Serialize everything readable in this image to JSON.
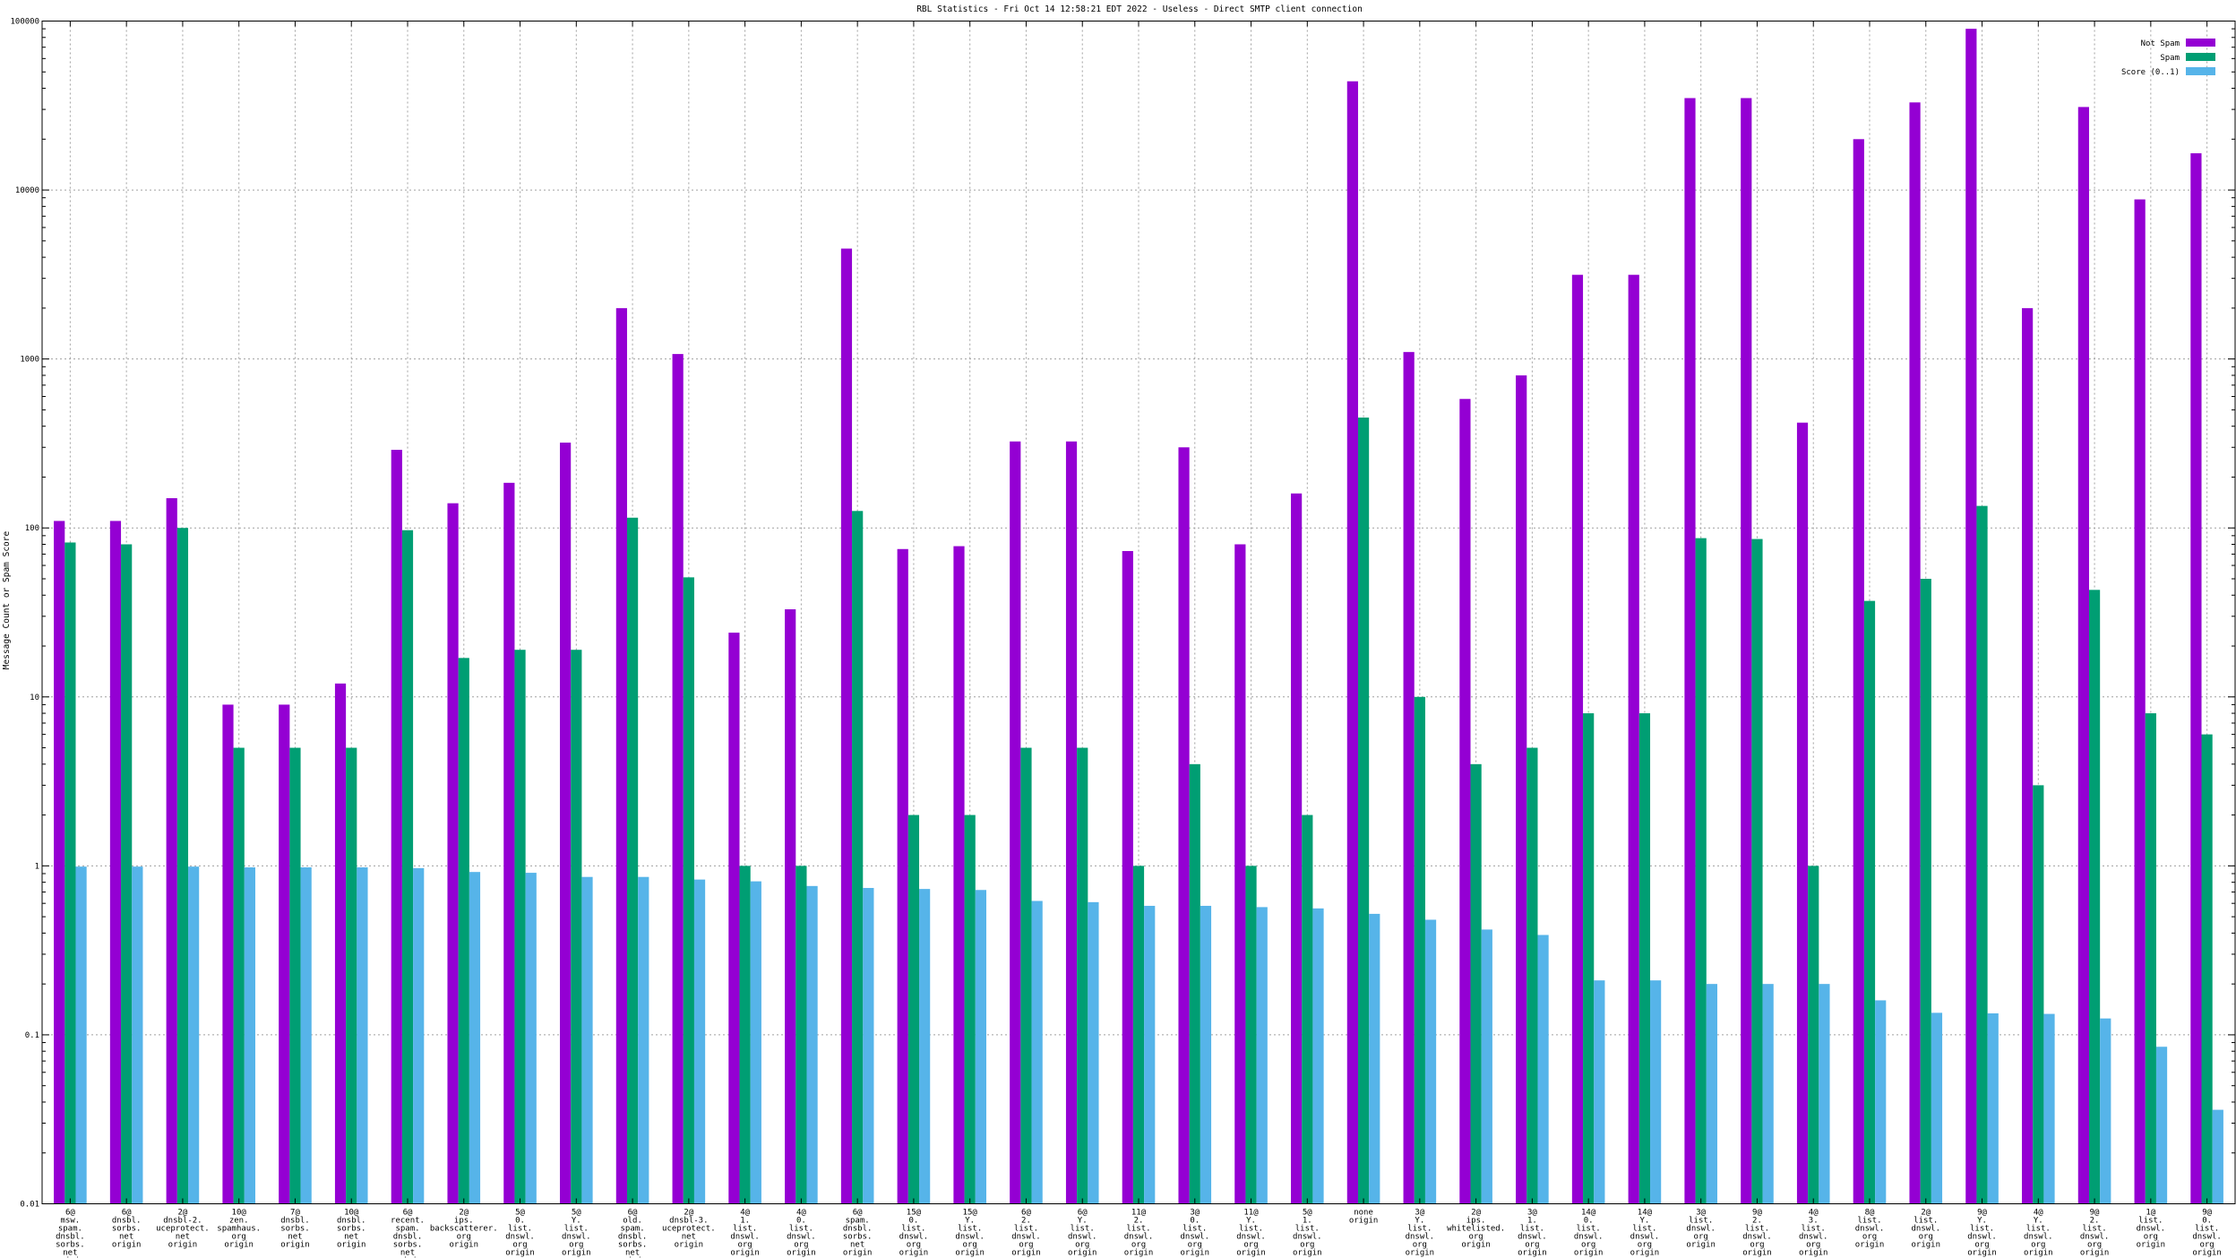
{
  "chart_data": {
    "type": "bar",
    "title": "RBL Statistics - Fri Oct 14 12:58:21 EDT 2022 - Useless - Direct SMTP client connection",
    "xlabel": "",
    "ylabel": "Message Count or Spam Score",
    "yscale": "log",
    "ylim": [
      0.01,
      100000
    ],
    "yticks": [
      "0.01",
      "0.1",
      "1",
      "10",
      "100",
      "1000",
      "10000",
      "100000"
    ],
    "grid": true,
    "legend_position": "top-right",
    "categories": [
      [
        "6@",
        "msw.",
        "spam.",
        "dnsbl.",
        "sorbs.",
        "net",
        "origin"
      ],
      [
        "6@",
        "dnsbl.",
        "sorbs.",
        "net",
        "origin"
      ],
      [
        "2@",
        "dnsbl-2.",
        "uceprotect.",
        "net",
        "origin"
      ],
      [
        "10@",
        "zen.",
        "spamhaus.",
        "org",
        "origin"
      ],
      [
        "7@",
        "dnsbl.",
        "sorbs.",
        "net",
        "origin"
      ],
      [
        "10@",
        "dnsbl.",
        "sorbs.",
        "net",
        "origin"
      ],
      [
        "6@",
        "recent.",
        "spam.",
        "dnsbl.",
        "sorbs.",
        "net",
        "origin"
      ],
      [
        "2@",
        "ips.",
        "backscatterer.",
        "org",
        "origin"
      ],
      [
        "5@",
        "0.",
        "list.",
        "dnswl.",
        "org",
        "origin"
      ],
      [
        "5@",
        "Y.",
        "list.",
        "dnswl.",
        "org",
        "origin"
      ],
      [
        "6@",
        "old.",
        "spam.",
        "dnsbl.",
        "sorbs.",
        "net",
        "origin"
      ],
      [
        "2@",
        "dnsbl-3.",
        "uceprotect.",
        "net",
        "origin"
      ],
      [
        "4@",
        "1.",
        "list.",
        "dnswl.",
        "org",
        "origin"
      ],
      [
        "4@",
        "0.",
        "list.",
        "dnswl.",
        "org",
        "origin"
      ],
      [
        "6@",
        "spam.",
        "dnsbl.",
        "sorbs.",
        "net",
        "origin"
      ],
      [
        "15@",
        "0.",
        "list.",
        "dnswl.",
        "org",
        "origin"
      ],
      [
        "15@",
        "Y.",
        "list.",
        "dnswl.",
        "org",
        "origin"
      ],
      [
        "6@",
        "2.",
        "list.",
        "dnswl.",
        "org",
        "origin"
      ],
      [
        "6@",
        "Y.",
        "list.",
        "dnswl.",
        "org",
        "origin"
      ],
      [
        "11@",
        "2.",
        "list.",
        "dnswl.",
        "org",
        "origin"
      ],
      [
        "3@",
        "0.",
        "list.",
        "dnswl.",
        "org",
        "origin"
      ],
      [
        "11@",
        "Y.",
        "list.",
        "dnswl.",
        "org",
        "origin"
      ],
      [
        "5@",
        "1.",
        "list.",
        "dnswl.",
        "org",
        "origin"
      ],
      [
        "none",
        "origin"
      ],
      [
        "3@",
        "Y.",
        "list.",
        "dnswl.",
        "org",
        "origin"
      ],
      [
        "2@",
        "ips.",
        "whitelisted.",
        "org",
        "origin"
      ],
      [
        "3@",
        "1.",
        "list.",
        "dnswl.",
        "org",
        "origin"
      ],
      [
        "14@",
        "0.",
        "list.",
        "dnswl.",
        "org",
        "origin"
      ],
      [
        "14@",
        "Y.",
        "list.",
        "dnswl.",
        "org",
        "origin"
      ],
      [
        "3@",
        "list.",
        "dnswl.",
        "org",
        "origin"
      ],
      [
        "9@",
        "2.",
        "list.",
        "dnswl.",
        "org",
        "origin"
      ],
      [
        "4@",
        "3.",
        "list.",
        "dnswl.",
        "org",
        "origin"
      ],
      [
        "8@",
        "list.",
        "dnswl.",
        "org",
        "origin"
      ],
      [
        "2@",
        "list.",
        "dnswl.",
        "org",
        "origin"
      ],
      [
        "9@",
        "Y.",
        "list.",
        "dnswl.",
        "org",
        "origin"
      ],
      [
        "4@",
        "Y.",
        "list.",
        "dnswl.",
        "org",
        "origin"
      ],
      [
        "9@",
        "2.",
        "list.",
        "dnswl.",
        "org",
        "origin"
      ],
      [
        "1@",
        "list.",
        "dnswl.",
        "org",
        "origin"
      ],
      [
        "9@",
        "0.",
        "list.",
        "dnswl.",
        "org",
        "origin"
      ]
    ],
    "series": [
      {
        "name": "Not Spam",
        "color": "#9400d3",
        "values": [
          110,
          110,
          150,
          9,
          9,
          12,
          290,
          140,
          185,
          320,
          2000,
          1070,
          24,
          33,
          4500,
          75,
          78,
          325,
          325,
          73,
          300,
          80,
          160,
          44000,
          1100,
          580,
          800,
          3150,
          3150,
          35000,
          35000,
          420,
          20000,
          33000,
          90000,
          2000,
          31000,
          8800,
          16500
        ]
      },
      {
        "name": "Spam",
        "color": "#009e73",
        "values": [
          82,
          80,
          100,
          5,
          5,
          5,
          97,
          17,
          19,
          19,
          115,
          51,
          1,
          1,
          126,
          2,
          2,
          5,
          5,
          1,
          4,
          1,
          2,
          450,
          10,
          4,
          5,
          8,
          8,
          87,
          86,
          1,
          37,
          50,
          135,
          3,
          43,
          8,
          6
        ]
      },
      {
        "name": "Score (0..1)",
        "color": "#56b4e9",
        "values": [
          0.99,
          0.99,
          0.99,
          0.98,
          0.98,
          0.98,
          0.97,
          0.92,
          0.91,
          0.86,
          0.86,
          0.83,
          0.81,
          0.76,
          0.74,
          0.73,
          0.72,
          0.62,
          0.61,
          0.58,
          0.58,
          0.57,
          0.56,
          0.52,
          0.48,
          0.42,
          0.39,
          0.21,
          0.21,
          0.2,
          0.2,
          0.2,
          0.16,
          0.135,
          0.134,
          0.133,
          0.125,
          0.085,
          0.036
        ]
      }
    ]
  }
}
